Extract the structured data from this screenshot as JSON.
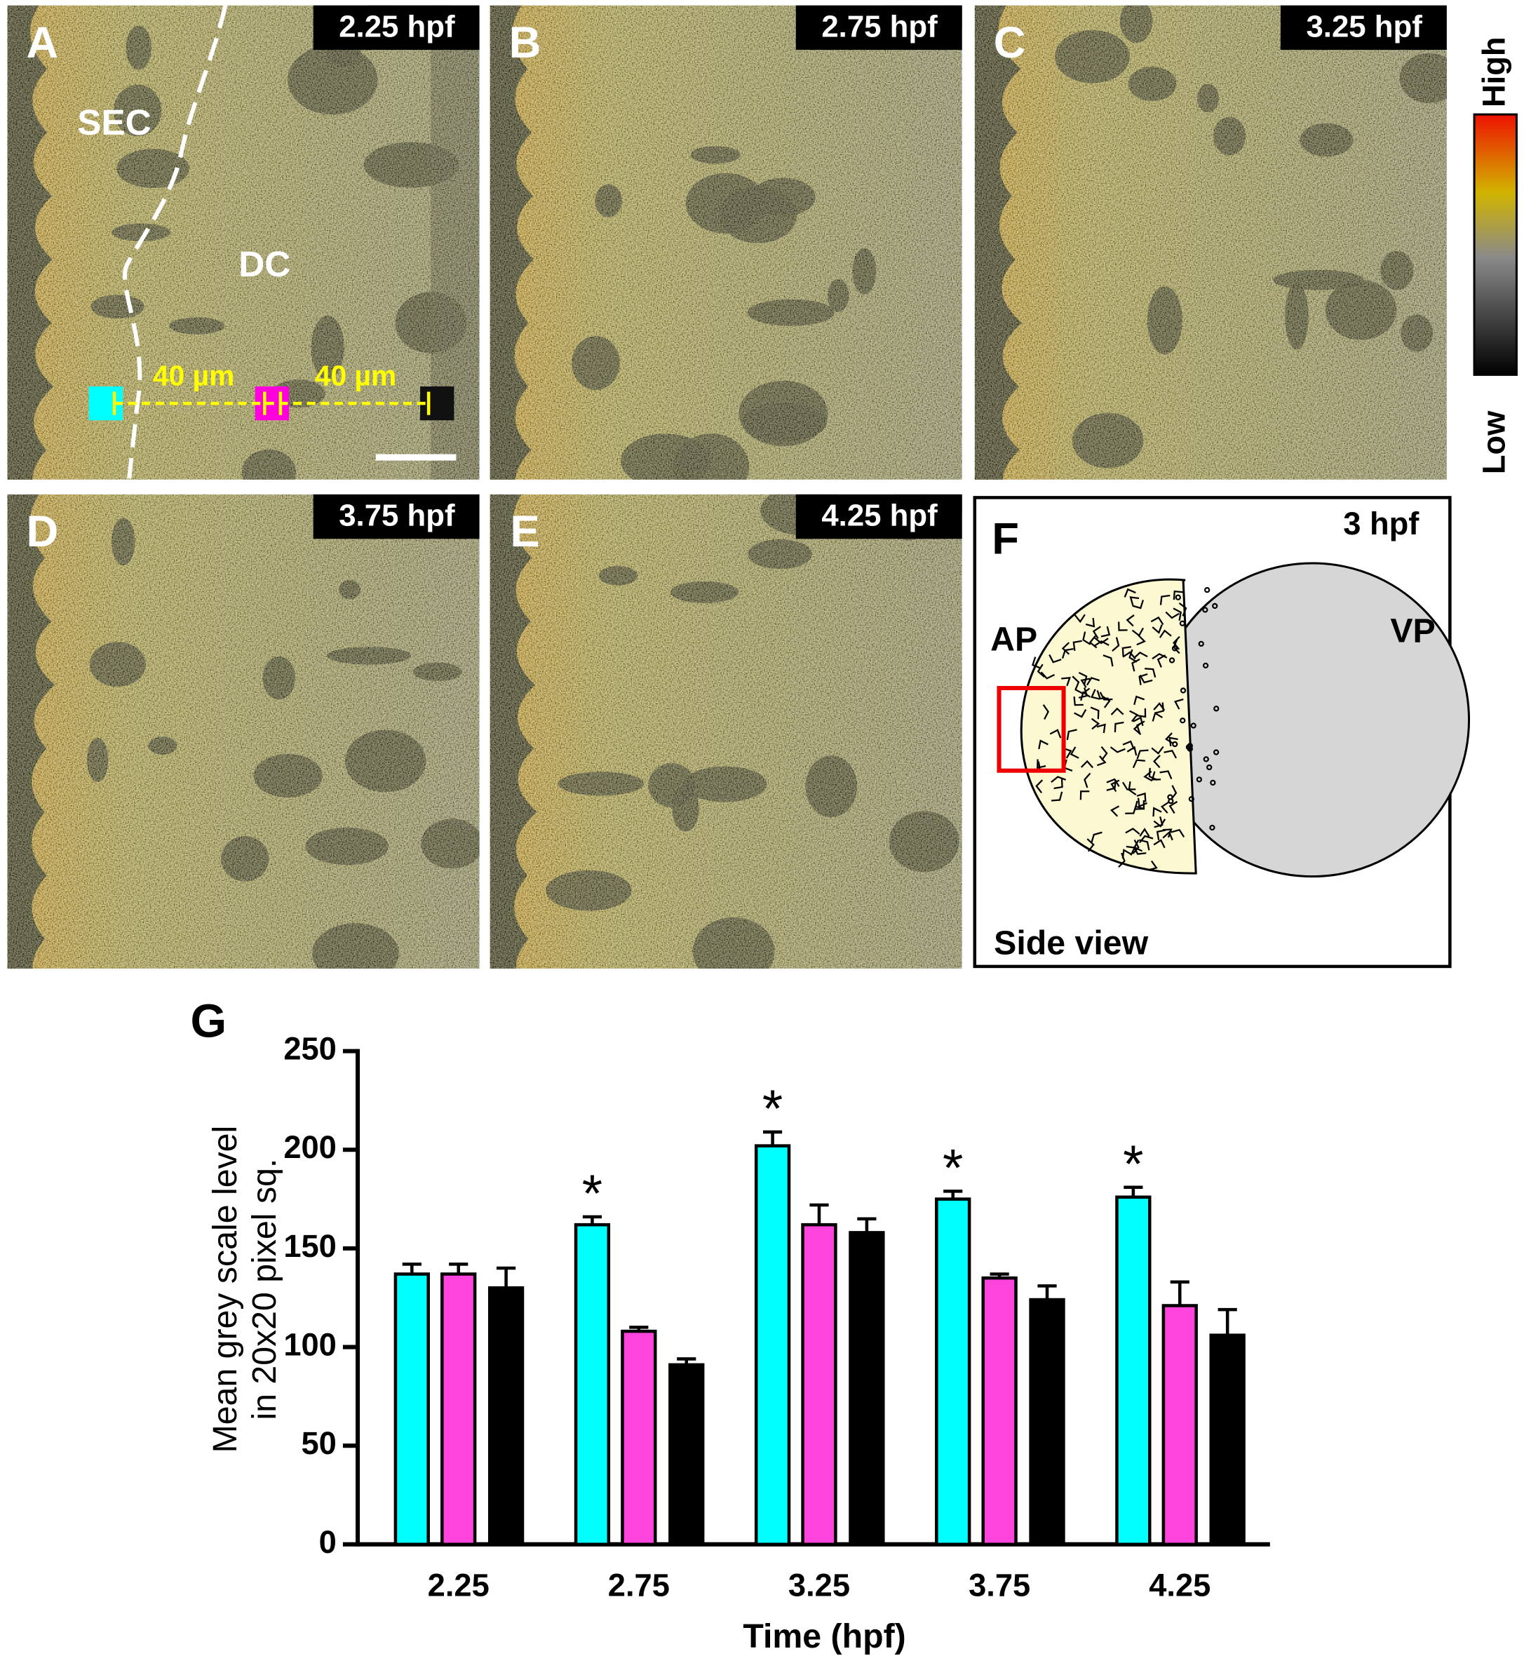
{
  "panels": [
    {
      "letter": "A",
      "time": "2.25 hpf",
      "labels": [
        "SEC",
        "DC"
      ],
      "distances": [
        "40 µm",
        "40 µm"
      ]
    },
    {
      "letter": "B",
      "time": "2.75 hpf"
    },
    {
      "letter": "C",
      "time": "3.25 hpf"
    },
    {
      "letter": "D",
      "time": "3.75 hpf"
    },
    {
      "letter": "E",
      "time": "4.25 hpf"
    },
    {
      "letter": "F",
      "time": "3 hpf",
      "labels": [
        "AP",
        "VP",
        "Side view"
      ]
    }
  ],
  "colorbar": {
    "high": "High",
    "low": "Low"
  },
  "chart_data": {
    "type": "bar",
    "panel_letter": "G",
    "y_label": [
      "Mean grey scale level",
      "in 20x20 pixel sq."
    ],
    "x_label": "Time (hpf)",
    "categories": [
      "2.25",
      "2.75",
      "3.25",
      "3.75",
      "4.25"
    ],
    "series": [
      {
        "color": "#00ffff",
        "values": [
          137,
          162,
          202,
          175,
          176
        ],
        "errors": [
          5,
          4,
          7,
          4,
          5
        ]
      },
      {
        "color": "#ff44dd",
        "values": [
          137,
          108,
          162,
          135,
          121
        ],
        "errors": [
          5,
          2,
          10,
          2,
          12
        ]
      },
      {
        "color": "#000000",
        "values": [
          130,
          91,
          158,
          124,
          106
        ],
        "errors": [
          10,
          3,
          7,
          7,
          13
        ]
      }
    ],
    "significance": [
      null,
      "*",
      "*",
      "*",
      "*"
    ],
    "ylim": [
      0,
      250
    ],
    "yticks": [
      0,
      50,
      100,
      150,
      200,
      250
    ]
  }
}
